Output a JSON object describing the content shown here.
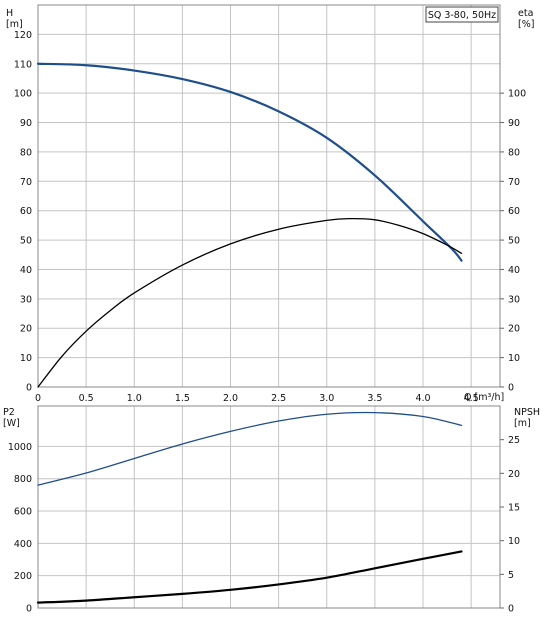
{
  "chart_data": [
    {
      "type": "line",
      "title": "SQ 3-80, 50Hz",
      "xlabel": "Q [m³/h]",
      "ylabel_left": "H [m]",
      "ylabel_right": "eta [%]",
      "xlim": [
        0,
        4.8
      ],
      "ylim_left": [
        0,
        130
      ],
      "ylim_right": [
        0,
        130
      ],
      "x_ticks": [
        "0",
        "0.5",
        "1.0",
        "1.5",
        "2.0",
        "2.5",
        "3.0",
        "3.5",
        "4.0",
        "4.5"
      ],
      "x_tick_values": [
        0,
        0.5,
        1.0,
        1.5,
        2.0,
        2.5,
        3.0,
        3.5,
        4.0,
        4.5
      ],
      "left_ticks": [
        0,
        10,
        20,
        30,
        40,
        50,
        60,
        70,
        80,
        90,
        100,
        110,
        120
      ],
      "right_ticks": [
        0,
        10,
        20,
        30,
        40,
        50,
        60,
        70,
        80,
        90,
        100
      ],
      "grid": true,
      "series": [
        {
          "axis": "left",
          "color": "#1f4e8c",
          "x": [
            0,
            0.5,
            1.0,
            1.5,
            2.0,
            2.5,
            3.0,
            3.5,
            4.0,
            4.3,
            4.4
          ],
          "y": [
            110.0,
            109.5,
            107.7,
            104.8,
            100.4,
            93.8,
            84.8,
            72.0,
            56.4,
            47.0,
            43.0
          ]
        },
        {
          "axis": "right",
          "color": "#000000",
          "x": [
            0,
            0.25,
            0.5,
            0.75,
            1.0,
            1.5,
            2.0,
            2.5,
            3.0,
            3.25,
            3.5,
            3.75,
            4.0,
            4.25,
            4.4
          ],
          "y": [
            0,
            10.5,
            19.0,
            26.0,
            32.0,
            41.5,
            48.7,
            53.7,
            56.7,
            57.3,
            56.9,
            55.0,
            52.2,
            48.3,
            45.5
          ]
        }
      ]
    },
    {
      "type": "line",
      "ylabel_left": "P2 [W]",
      "ylabel_right": "NPSH [m]",
      "xlim": [
        0,
        4.8
      ],
      "ylim_left": [
        0,
        1250
      ],
      "ylim_right": [
        0,
        30
      ],
      "left_ticks": [
        0,
        200,
        400,
        600,
        800,
        1000
      ],
      "right_ticks": [
        0,
        5,
        10,
        15,
        20,
        25
      ],
      "grid": true,
      "series": [
        {
          "axis": "left",
          "color": "#1f4e8c",
          "x": [
            0,
            0.5,
            1.0,
            1.5,
            2.0,
            2.5,
            3.0,
            3.5,
            4.0,
            4.4
          ],
          "y": [
            760,
            835,
            925,
            1015,
            1093,
            1157,
            1199,
            1209,
            1185,
            1130
          ]
        },
        {
          "axis": "right",
          "color": "#000000",
          "x": [
            0,
            0.5,
            1.0,
            1.5,
            2.0,
            2.5,
            3.0,
            3.5,
            4.0,
            4.4
          ],
          "y": [
            0.8,
            1.1,
            1.6,
            2.1,
            2.7,
            3.5,
            4.5,
            5.9,
            7.3,
            8.4
          ]
        }
      ]
    }
  ]
}
